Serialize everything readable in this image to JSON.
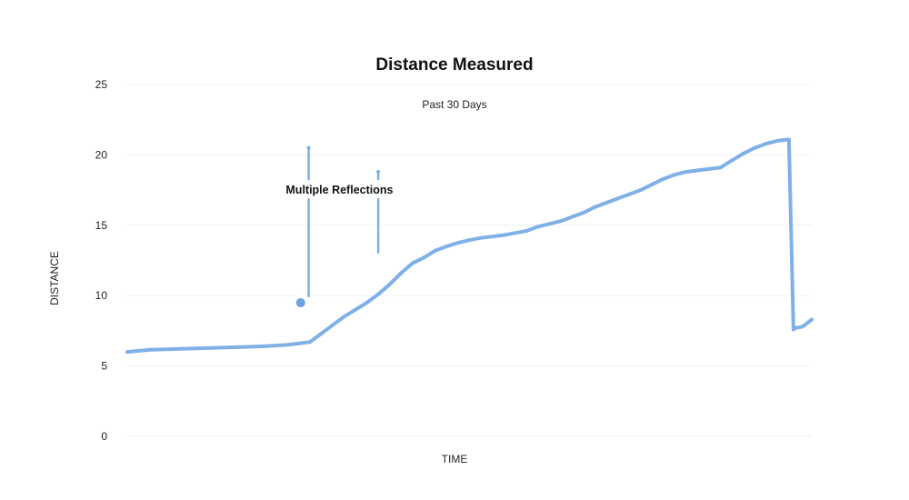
{
  "chart_data": {
    "type": "line",
    "title": "Distance Measured",
    "subtitle": "Past 30 Days",
    "xlabel": "TIME",
    "ylabel": "DISTANCE",
    "ylim": [
      0,
      25
    ],
    "yticks": [
      0,
      5,
      10,
      15,
      20,
      25
    ],
    "grid": true,
    "legend": "none",
    "colors": {
      "series": "#7fb1e6",
      "highlight": "#6aa3e0"
    },
    "series": [
      {
        "x": [
          0,
          1,
          2,
          3,
          4,
          5,
          6,
          7,
          8,
          8.5,
          9,
          9.5,
          10,
          10.5,
          11,
          11.5,
          12,
          12.5,
          13,
          13.5,
          14,
          14.5,
          15,
          15.5,
          16,
          16.5,
          17,
          17.5,
          18,
          18.5,
          19,
          19.5,
          20,
          20.5,
          21,
          21.5,
          22,
          22.5,
          23,
          23.5,
          24,
          24.5,
          25,
          25.5,
          26,
          26.5,
          27,
          27.5,
          28,
          28.5,
          29,
          29.2,
          29.3,
          29.6,
          30
        ],
        "y": [
          6.0,
          6.15,
          6.2,
          6.25,
          6.3,
          6.35,
          6.4,
          6.5,
          6.7,
          7.3,
          7.9,
          8.5,
          9.0,
          9.5,
          10.1,
          10.8,
          11.6,
          12.3,
          12.7,
          13.2,
          13.5,
          13.75,
          13.95,
          14.1,
          14.2,
          14.3,
          14.45,
          14.6,
          14.9,
          15.1,
          15.3,
          15.6,
          15.9,
          16.3,
          16.6,
          16.9,
          17.2,
          17.5,
          17.9,
          18.3,
          18.6,
          18.8,
          18.9,
          19.0,
          19.1,
          19.6,
          20.1,
          20.5,
          20.8,
          21.0,
          21.1,
          7.6,
          7.7,
          7.8,
          8.3
        ]
      }
    ],
    "spikes": [
      {
        "x": 7.95,
        "y_from": 9.9,
        "y_to": 20.5
      },
      {
        "x": 11.0,
        "y_from": 13.0,
        "y_to": 18.8
      }
    ],
    "highlight_point": {
      "x": 7.6,
      "y": 9.5
    },
    "annotation": {
      "text": "Multiple Reflections",
      "x": 9.3,
      "y": 17.5
    }
  }
}
